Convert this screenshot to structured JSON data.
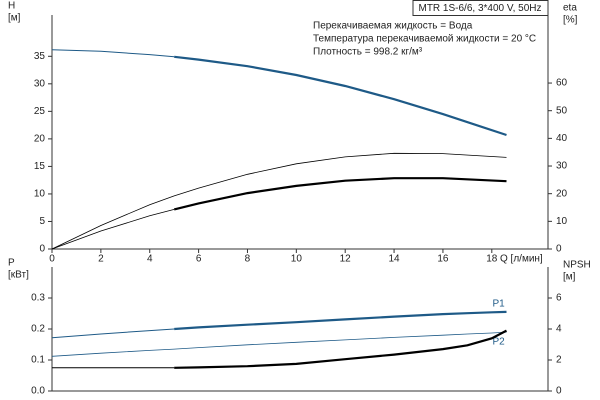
{
  "chart_data": [
    {
      "type": "line",
      "title": "MTR 1S-6/6, 3*400 V, 50Hz",
      "annotations": [
        "Перекачиваемая жидкость = Вода",
        "Температура перекачиваемой жидкости = 20 °C",
        "Плотность = 998.2 кг/м³"
      ],
      "ylabel": [
        "H",
        "[м]"
      ],
      "y2label": [
        "eta",
        "[%]"
      ],
      "xlabel": "Q [л/мин]",
      "x": [
        0,
        2,
        4,
        5,
        6,
        8,
        10,
        12,
        14,
        16,
        18.6
      ],
      "xlim": [
        0,
        20.3
      ],
      "xticks": [
        0,
        2,
        4,
        6,
        8,
        10,
        12,
        14,
        16,
        18
      ],
      "ylim": [
        0,
        42.5
      ],
      "yticks": [
        0,
        5,
        10,
        15,
        20,
        25,
        30,
        35
      ],
      "y2lim": [
        0,
        84.6
      ],
      "y2ticks": [
        0,
        10,
        20,
        30,
        40,
        50,
        60
      ],
      "series": [
        {
          "color": "#1e5a87",
          "width": 1,
          "values": [
            36.2,
            35.9,
            35.3,
            34.9,
            null,
            null,
            null,
            null,
            null,
            null,
            null
          ]
        },
        {
          "color": "#1e5a87",
          "width": 2.2,
          "values": [
            null,
            null,
            null,
            34.9,
            34.4,
            33.2,
            31.6,
            29.6,
            27.2,
            24.5,
            20.7
          ]
        },
        {
          "color": "#000000",
          "width": 0.8,
          "axis": "y2",
          "values": [
            0,
            8.5,
            16,
            19.2,
            22,
            27,
            30.8,
            33.3,
            34.6,
            34.5,
            33.1
          ]
        },
        {
          "color": "#000000",
          "width": 0.8,
          "axis": "y2",
          "values": [
            0,
            6.5,
            12,
            14.3,
            null,
            null,
            null,
            null,
            null,
            null,
            null
          ]
        },
        {
          "color": "#000000",
          "width": 2.2,
          "axis": "y2",
          "values": [
            null,
            null,
            null,
            14.3,
            16.5,
            20.2,
            22.8,
            24.7,
            25.6,
            25.6,
            24.5
          ]
        }
      ]
    },
    {
      "type": "line",
      "ylabel": [
        "P",
        "[кВт]"
      ],
      "y2label": [
        "NPSH",
        "[м]"
      ],
      "x": [
        0,
        2,
        4,
        5,
        6,
        8,
        10,
        12,
        14,
        16,
        17,
        18,
        18.6
      ],
      "xlim": [
        0,
        20.3
      ],
      "ylim": [
        0,
        0.4
      ],
      "yticks": [
        {
          "value": 0,
          "label": "0.0"
        },
        0.1,
        0.2,
        0.3
      ],
      "y2lim": [
        0,
        8
      ],
      "y2ticks": [
        0,
        2,
        4,
        6
      ],
      "series": [
        {
          "color": "#1e5a87",
          "width": 1,
          "values": [
            0.172,
            0.184,
            0.195,
            0.2,
            null,
            null,
            null,
            null,
            null,
            null,
            null,
            null,
            null
          ]
        },
        {
          "name": "P1",
          "color": "#1e5a87",
          "width": 2.2,
          "values": [
            null,
            null,
            null,
            0.2,
            0.205,
            0.214,
            0.222,
            0.231,
            0.24,
            0.248,
            0.251,
            0.254,
            0.255
          ]
        },
        {
          "name": "P2",
          "color": "#1e5a87",
          "width": 0.8,
          "values": [
            0.112,
            0.122,
            0.131,
            0.135,
            0.14,
            0.149,
            0.157,
            0.165,
            0.173,
            0.18,
            0.184,
            0.187,
            0.19
          ]
        },
        {
          "color": "#000000",
          "width": 1,
          "axis": "y2",
          "values": [
            1.5,
            1.5,
            1.5,
            1.5,
            null,
            null,
            null,
            null,
            null,
            null,
            null,
            null,
            null
          ]
        },
        {
          "color": "#000000",
          "width": 2.2,
          "axis": "y2",
          "values": [
            null,
            null,
            null,
            1.5,
            1.52,
            1.6,
            1.75,
            2.05,
            2.35,
            2.7,
            2.95,
            3.4,
            3.9
          ]
        }
      ]
    }
  ]
}
